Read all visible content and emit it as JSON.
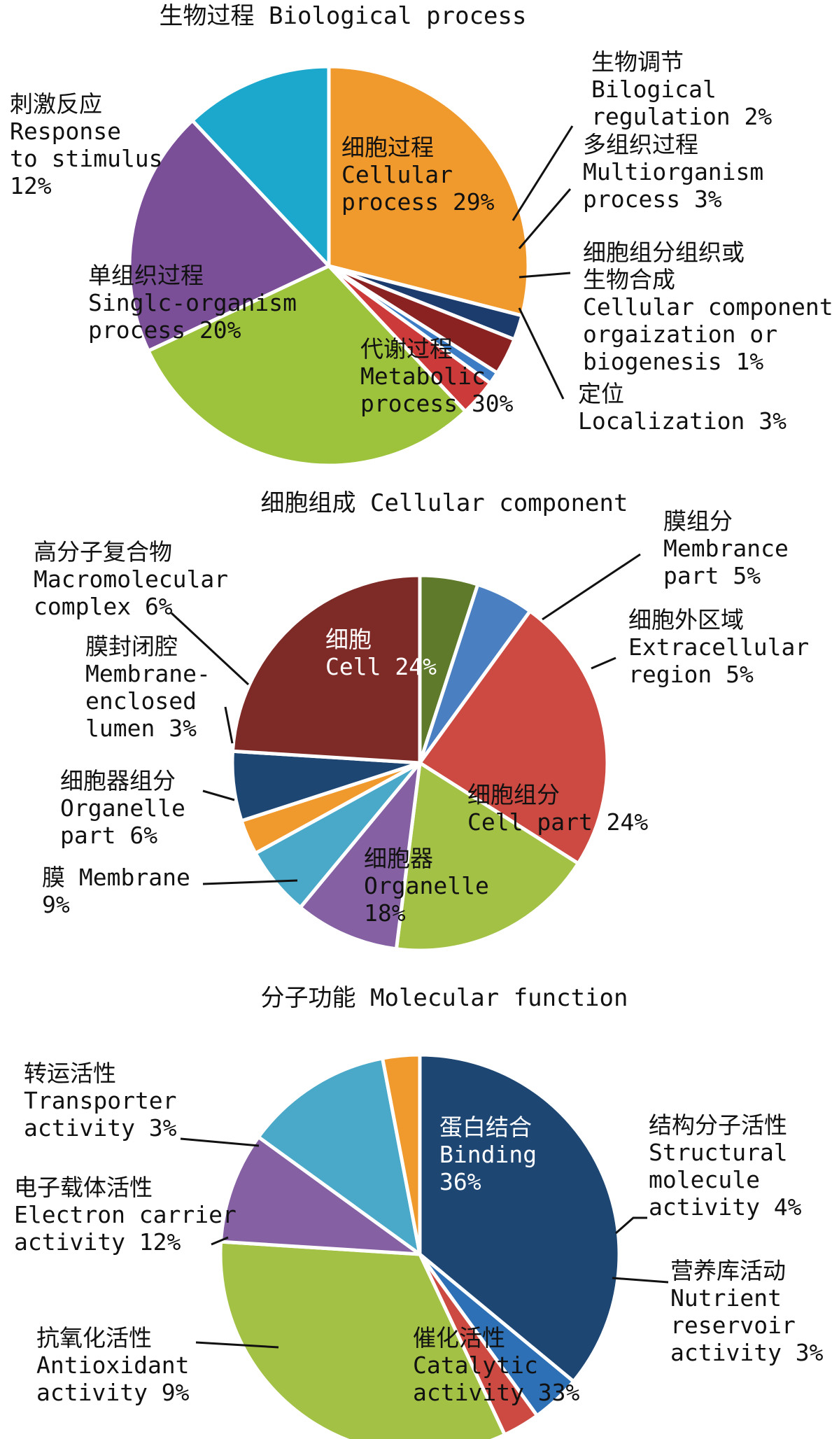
{
  "chart_data": [
    {
      "type": "pie",
      "title": "生物过程 Biological process",
      "slices": [
        {
          "cn": "细胞过程",
          "en": [
            "Cellular",
            "process 29%"
          ],
          "value": 29,
          "color": "#f09a2e"
        },
        {
          "cn": "生物调节",
          "en": [
            "Bilogical",
            "regulation 2%"
          ],
          "value": 2,
          "color": "#1c3c6e"
        },
        {
          "cn": "多组织过程",
          "en": [
            "Multiorganism",
            "process 3%"
          ],
          "value": 3,
          "color": "#8b2222"
        },
        {
          "cn": "细胞组分组织或",
          "cn2": "生物合成",
          "en": [
            "Cellular component",
            "orgaization or",
            "biogenesis 1%"
          ],
          "value": 1,
          "color": "#3b7cc4"
        },
        {
          "cn": "定位",
          "en": [
            "Localization 3%"
          ],
          "value": 3,
          "color": "#cc3a3a"
        },
        {
          "cn": "代谢过程",
          "en": [
            "Metabolic",
            "process 30%"
          ],
          "value": 30,
          "color": "#9dc23b"
        },
        {
          "cn": "单组织过程",
          "en": [
            "Singlc-organism",
            "process 20%"
          ],
          "value": 20,
          "color": "#7a4f98"
        },
        {
          "cn": "刺激反应",
          "en": [
            "Response",
            "to stimulus",
            "12%"
          ],
          "value": 12,
          "color": "#1ba8cc"
        }
      ]
    },
    {
      "type": "pie",
      "title": "细胞组成 Cellular component",
      "slices": [
        {
          "cn": "膜组分",
          "en": [
            "Membrance",
            "part 5%"
          ],
          "value": 5,
          "color": "#5e7a2a"
        },
        {
          "cn": "细胞外区域",
          "en": [
            "Extracellular",
            "region 5%"
          ],
          "value": 5,
          "color": "#4a7fc2"
        },
        {
          "cn": "细胞组分",
          "en": [
            "Cell part 24%"
          ],
          "value": 24,
          "color": "#cc4a42"
        },
        {
          "cn": "细胞器",
          "en": [
            "Organelle",
            "18%"
          ],
          "value": 18,
          "color": "#a3c145"
        },
        {
          "cn": "膜 Membrane",
          "en": [
            "9%"
          ],
          "value": 9,
          "color": "#8561a3"
        },
        {
          "cn": "细胞器组分",
          "en": [
            "Organelle",
            "part 6%"
          ],
          "value": 6,
          "color": "#4aa9c9"
        },
        {
          "cn": "膜封闭腔",
          "en": [
            "Membrane-",
            "enclosed",
            "lumen 3%"
          ],
          "value": 3,
          "color": "#f09a2e"
        },
        {
          "cn": "高分子复合物",
          "en": [
            "Macromolecular",
            "complex 6%"
          ],
          "value": 6,
          "color": "#1d4673"
        },
        {
          "cn": "细胞",
          "en": [
            "Cell 24%"
          ],
          "value": 24,
          "color": "#7e2a26"
        }
      ]
    },
    {
      "type": "pie",
      "title": "分子功能 Molecular function",
      "slices": [
        {
          "cn": "蛋白结合",
          "en": [
            "Binding",
            "36%"
          ],
          "value": 36,
          "color": "#1d4673"
        },
        {
          "cn": "结构分子活性",
          "en": [
            "Structural",
            "molecule",
            "activity 4%"
          ],
          "value": 4,
          "color": "#2d70b5"
        },
        {
          "cn": "营养库活动",
          "en": [
            "Nutrient",
            "reservoir",
            "activity 3%"
          ],
          "value": 3,
          "color": "#cc4a42"
        },
        {
          "cn": "催化活性",
          "en": [
            "Catalytic",
            "activity 33%"
          ],
          "value": 33,
          "color": "#a3c145"
        },
        {
          "cn": "抗氧化活性",
          "en": [
            "Antioxidant",
            "activity 9%"
          ],
          "value": 9,
          "color": "#8561a3"
        },
        {
          "cn": "电子载体活性",
          "en": [
            "Electron carrier",
            "activity 12%"
          ],
          "value": 12,
          "color": "#4aa9c9"
        },
        {
          "cn": "转运活性",
          "en": [
            "Transporter",
            "activity 3%"
          ],
          "value": 3,
          "color": "#f09a2e"
        }
      ]
    }
  ]
}
